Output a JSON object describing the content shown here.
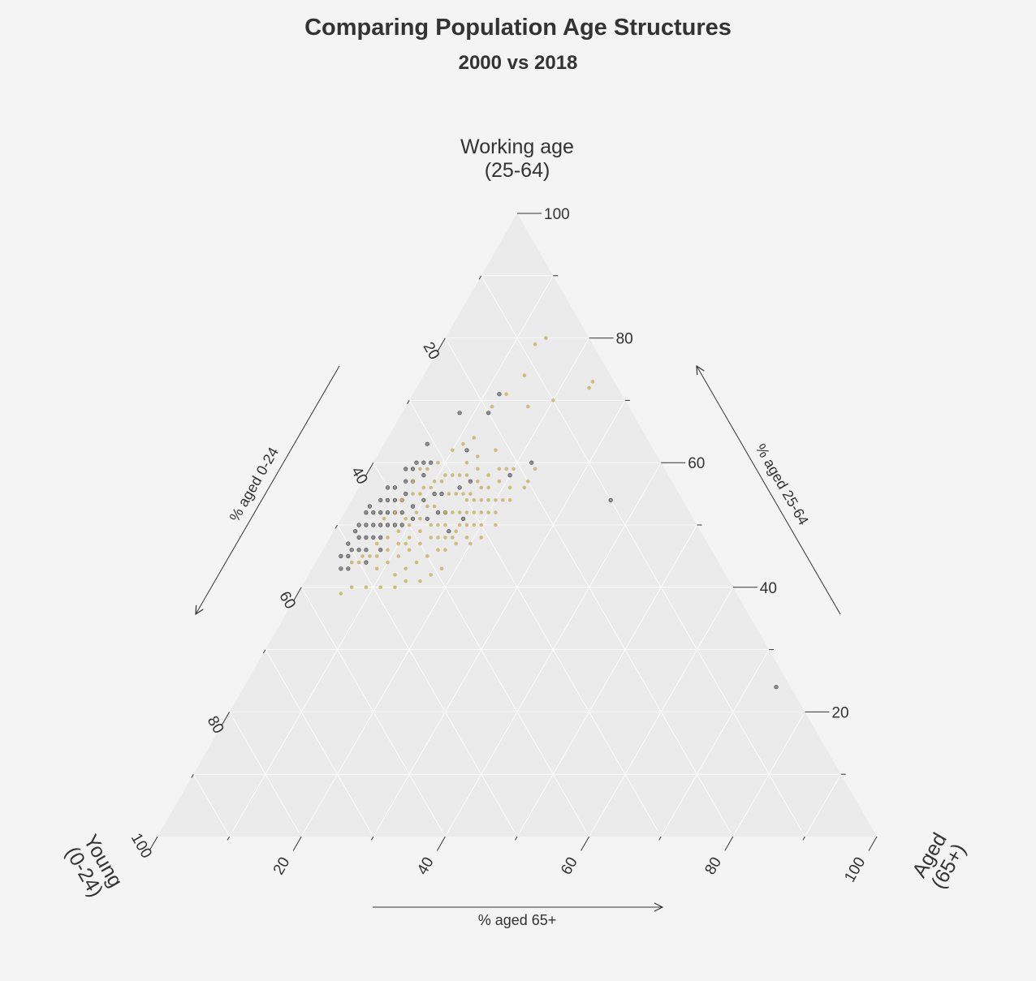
{
  "chart_data": {
    "type": "scatter",
    "subtype": "ternary",
    "title": "Comparing Population Age Structures",
    "subtitle": "2000 vs 2018",
    "vertices": {
      "top": [
        "Working age",
        "(25-64)"
      ],
      "left": [
        "Young",
        "(0-24)"
      ],
      "right": [
        "Aged",
        "(65+)"
      ]
    },
    "axes": {
      "left": {
        "title": "% aged 0-24",
        "ticks": [
          "20",
          "40",
          "60",
          "80",
          "100"
        ]
      },
      "right": {
        "title": "% aged 25-64",
        "ticks": [
          "20",
          "40",
          "60",
          "80",
          "100"
        ]
      },
      "bottom": {
        "title": "% aged 65+",
        "ticks": [
          "20",
          "40",
          "60",
          "80",
          "100"
        ]
      }
    },
    "grid": true,
    "series": [
      {
        "color": "#808080",
        "description_points": "[young %, aged %, working %]",
        "points": [
          [
            31,
            6,
            63
          ],
          [
            33,
            7,
            60
          ],
          [
            34,
            8,
            58
          ],
          [
            35,
            6,
            59
          ],
          [
            36,
            7,
            57
          ],
          [
            37,
            6,
            57
          ],
          [
            38,
            7,
            55
          ],
          [
            39,
            7,
            54
          ],
          [
            40,
            6,
            54
          ],
          [
            40,
            8,
            52
          ],
          [
            41,
            7,
            52
          ],
          [
            41,
            5,
            54
          ],
          [
            42,
            6,
            52
          ],
          [
            42,
            8,
            50
          ],
          [
            43,
            7,
            50
          ],
          [
            43,
            5,
            52
          ],
          [
            44,
            6,
            50
          ],
          [
            44,
            4,
            52
          ],
          [
            45,
            5,
            50
          ],
          [
            45,
            7,
            48
          ],
          [
            46,
            6,
            48
          ],
          [
            46,
            4,
            50
          ],
          [
            47,
            5,
            48
          ],
          [
            47,
            3,
            50
          ],
          [
            48,
            4,
            48
          ],
          [
            48,
            6,
            46
          ],
          [
            49,
            5,
            46
          ],
          [
            50,
            4,
            46
          ],
          [
            50,
            3,
            47
          ],
          [
            51,
            4,
            45
          ],
          [
            52,
            3,
            45
          ],
          [
            52,
            5,
            43
          ],
          [
            53,
            4,
            43
          ],
          [
            48,
            3,
            49
          ],
          [
            45,
            3,
            52
          ],
          [
            44,
            3,
            53
          ],
          [
            40,
            4,
            56
          ],
          [
            42,
            4,
            54
          ],
          [
            39,
            5,
            56
          ],
          [
            36,
            5,
            59
          ],
          [
            34,
            6,
            60
          ],
          [
            32,
            8,
            60
          ],
          [
            38,
            9,
            53
          ],
          [
            36,
            10,
            54
          ],
          [
            34,
            11,
            55
          ],
          [
            37,
            12,
            51
          ],
          [
            35,
            13,
            52
          ],
          [
            33,
            12,
            55
          ],
          [
            30,
            14,
            56
          ],
          [
            28,
            15,
            57
          ],
          [
            35,
            16,
            49
          ],
          [
            32,
            17,
            51
          ],
          [
            26,
            12,
            62
          ],
          [
            24,
            8,
            68
          ],
          [
            22,
            20,
            58
          ],
          [
            17,
            12,
            71
          ],
          [
            20,
            12,
            68
          ],
          [
            10,
            36,
            54
          ],
          [
            2,
            74,
            24
          ],
          [
            18,
            22,
            60
          ],
          [
            34,
            14,
            52
          ],
          [
            39,
            10,
            51
          ],
          [
            41,
            9,
            50
          ],
          [
            46,
            8,
            46
          ],
          [
            49,
            7,
            44
          ]
        ]
      },
      {
        "color": "#c9b469",
        "description_points": "[young %, aged %, working %]",
        "points": [
          [
            30,
            12,
            58
          ],
          [
            31,
            14,
            55
          ],
          [
            32,
            13,
            55
          ],
          [
            33,
            15,
            52
          ],
          [
            34,
            14,
            52
          ],
          [
            35,
            12,
            53
          ],
          [
            36,
            14,
            50
          ],
          [
            37,
            13,
            50
          ],
          [
            38,
            11,
            51
          ],
          [
            39,
            12,
            49
          ],
          [
            40,
            10,
            50
          ],
          [
            41,
            11,
            48
          ],
          [
            42,
            9,
            49
          ],
          [
            43,
            10,
            47
          ],
          [
            44,
            8,
            48
          ],
          [
            45,
            9,
            46
          ],
          [
            46,
            7,
            47
          ],
          [
            47,
            8,
            45
          ],
          [
            48,
            7,
            45
          ],
          [
            49,
            6,
            45
          ],
          [
            50,
            6,
            44
          ],
          [
            51,
            5,
            44
          ],
          [
            30,
            15,
            55
          ],
          [
            29,
            17,
            54
          ],
          [
            28,
            18,
            54
          ],
          [
            27,
            19,
            54
          ],
          [
            26,
            20,
            54
          ],
          [
            25,
            21,
            54
          ],
          [
            24,
            22,
            54
          ],
          [
            27,
            16,
            57
          ],
          [
            29,
            13,
            58
          ],
          [
            31,
            11,
            58
          ],
          [
            33,
            10,
            57
          ],
          [
            35,
            9,
            56
          ],
          [
            37,
            8,
            55
          ],
          [
            39,
            7,
            54
          ],
          [
            41,
            7,
            52
          ],
          [
            43,
            6,
            51
          ],
          [
            28,
            14,
            58
          ],
          [
            26,
            15,
            59
          ],
          [
            30,
            16,
            54
          ],
          [
            32,
            16,
            52
          ],
          [
            34,
            17,
            49
          ],
          [
            36,
            16,
            48
          ],
          [
            38,
            16,
            46
          ],
          [
            40,
            15,
            45
          ],
          [
            42,
            14,
            44
          ],
          [
            44,
            13,
            43
          ],
          [
            46,
            12,
            42
          ],
          [
            34,
            10,
            56
          ],
          [
            36,
            9,
            55
          ],
          [
            38,
            10,
            52
          ],
          [
            40,
            9,
            51
          ],
          [
            42,
            11,
            47
          ],
          [
            44,
            11,
            45
          ],
          [
            46,
            10,
            44
          ],
          [
            48,
            9,
            43
          ],
          [
            31,
            17,
            52
          ],
          [
            29,
            19,
            52
          ],
          [
            27,
            21,
            52
          ],
          [
            32,
            18,
            50
          ],
          [
            30,
            20,
            50
          ],
          [
            28,
            22,
            50
          ],
          [
            33,
            19,
            48
          ],
          [
            31,
            21,
            48
          ],
          [
            25,
            17,
            58
          ],
          [
            23,
            18,
            59
          ],
          [
            22,
            19,
            59
          ],
          [
            21,
            20,
            59
          ],
          [
            36,
            11,
            53
          ],
          [
            35,
            15,
            50
          ],
          [
            33,
            8,
            59
          ],
          [
            31,
            9,
            60
          ],
          [
            28,
            10,
            62
          ],
          [
            26,
            11,
            63
          ],
          [
            24,
            12,
            64
          ],
          [
            19,
            12,
            69
          ],
          [
            16,
            13,
            71
          ],
          [
            12,
            14,
            74
          ],
          [
            10,
            20,
            70
          ],
          [
            4,
            24,
            72
          ],
          [
            3,
            24,
            73
          ],
          [
            6,
            14,
            80
          ],
          [
            8,
            13,
            79
          ],
          [
            20,
            23,
            57
          ],
          [
            18,
            23,
            59
          ],
          [
            22,
            16,
            62
          ],
          [
            14,
            17,
            69
          ],
          [
            27,
            13,
            60
          ],
          [
            25,
            14,
            61
          ],
          [
            38,
            14,
            48
          ],
          [
            40,
            13,
            47
          ],
          [
            42,
            12,
            46
          ],
          [
            37,
            17,
            46
          ],
          [
            35,
            18,
            47
          ],
          [
            33,
            20,
            47
          ],
          [
            39,
            18,
            43
          ],
          [
            41,
            17,
            42
          ],
          [
            43,
            16,
            41
          ],
          [
            45,
            14,
            41
          ],
          [
            47,
            13,
            40
          ],
          [
            49,
            11,
            40
          ],
          [
            51,
            9,
            40
          ],
          [
            53,
            7,
            40
          ],
          [
            55,
            6,
            39
          ],
          [
            36,
            7,
            57
          ],
          [
            34,
            7,
            59
          ],
          [
            32,
            11,
            57
          ],
          [
            30,
            18,
            52
          ],
          [
            28,
            20,
            52
          ],
          [
            26,
            18,
            56
          ],
          [
            24,
            19,
            57
          ],
          [
            23,
            21,
            56
          ],
          [
            21,
            23,
            56
          ],
          [
            37,
            15,
            48
          ],
          [
            35,
            17,
            48
          ],
          [
            33,
            17,
            50
          ],
          [
            29,
            16,
            55
          ],
          [
            31,
            19,
            50
          ],
          [
            27,
            17,
            56
          ]
        ]
      }
    ]
  }
}
